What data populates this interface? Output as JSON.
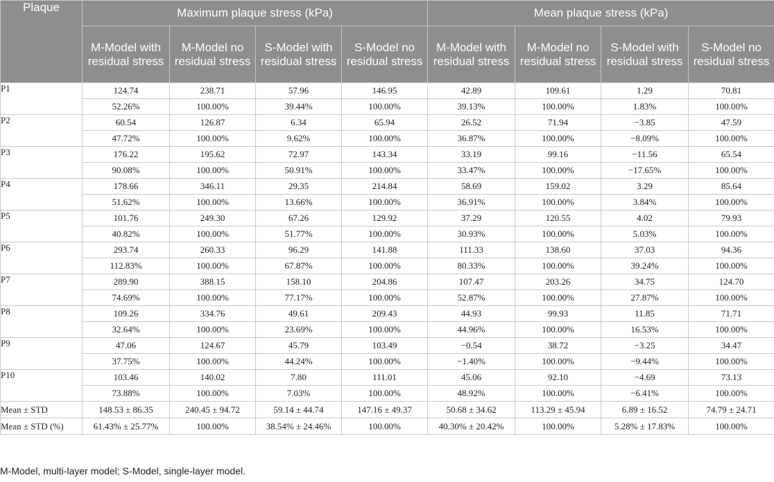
{
  "header": {
    "plaque_label": "Plaque",
    "groups": [
      "Maximum plaque stress (kPa)",
      "Mean plaque stress (kPa)"
    ],
    "columns": [
      "M-Model with residual stress",
      "M-Model no residual stress",
      "S-Model with residual stress",
      "S-Model no residual stress",
      "M-Model with residual stress",
      "M-Model no residual stress",
      "S-Model with residual stress",
      "S-Model no residual stress"
    ]
  },
  "rows": [
    {
      "name": "P1",
      "values": [
        "124.74",
        "238.71",
        "57.96",
        "146.95",
        "42.89",
        "109.61",
        "1.29",
        "70.81"
      ],
      "percents": [
        "52.26%",
        "100.00%",
        "39.44%",
        "100.00%",
        "39.13%",
        "100.00%",
        "1.83%",
        "100.00%"
      ]
    },
    {
      "name": "P2",
      "values": [
        "60.54",
        "126.87",
        "6.34",
        "65.94",
        "26.52",
        "71.94",
        "−3.85",
        "47.59"
      ],
      "percents": [
        "47.72%",
        "100.00%",
        "9.62%",
        "100.00%",
        "36.87%",
        "100.00%",
        "−8.09%",
        "100.00%"
      ]
    },
    {
      "name": "P3",
      "values": [
        "176.22",
        "195.62",
        "72.97",
        "143.34",
        "33.19",
        "99.16",
        "−11.56",
        "65.54"
      ],
      "percents": [
        "90.08%",
        "100.00%",
        "50.91%",
        "100.00%",
        "33.47%",
        "100.00%",
        "−17.65%",
        "100.00%"
      ]
    },
    {
      "name": "P4",
      "values": [
        "178.66",
        "346.11",
        "29.35",
        "214.84",
        "58.69",
        "159.02",
        "3.29",
        "85.64"
      ],
      "percents": [
        "51.62%",
        "100.00%",
        "13.66%",
        "100.00%",
        "36.91%",
        "100.00%",
        "3.84%",
        "100.00%"
      ]
    },
    {
      "name": "P5",
      "values": [
        "101.76",
        "249.30",
        "67.26",
        "129.92",
        "37.29",
        "120.55",
        "4.02",
        "79.93"
      ],
      "percents": [
        "40.82%",
        "100.00%",
        "51.77%",
        "100.00%",
        "30.93%",
        "100.00%",
        "5.03%",
        "100.00%"
      ]
    },
    {
      "name": "P6",
      "values": [
        "293.74",
        "260.33",
        "96.29",
        "141.88",
        "111.33",
        "138.60",
        "37.03",
        "94.36"
      ],
      "percents": [
        "112.83%",
        "100.00%",
        "67.87%",
        "100.00%",
        "80.33%",
        "100.00%",
        "39.24%",
        "100.00%"
      ]
    },
    {
      "name": "P7",
      "values": [
        "289.90",
        "388.15",
        "158.10",
        "204.86",
        "107.47",
        "203.26",
        "34.75",
        "124.70"
      ],
      "percents": [
        "74.69%",
        "100.00%",
        "77.17%",
        "100.00%",
        "52.87%",
        "100.00%",
        "27.87%",
        "100.00%"
      ]
    },
    {
      "name": "P8",
      "values": [
        "109.26",
        "334.76",
        "49.61",
        "209.43",
        "44.93",
        "99.93",
        "11.85",
        "71.71"
      ],
      "percents": [
        "32.64%",
        "100.00%",
        "23.69%",
        "100.00%",
        "44.96%",
        "100.00%",
        "16.53%",
        "100.00%"
      ]
    },
    {
      "name": "P9",
      "values": [
        "47.06",
        "124.67",
        "45.79",
        "103.49",
        "−0.54",
        "38.72",
        "−3.25",
        "34.47"
      ],
      "percents": [
        "37.75%",
        "100.00%",
        "44.24%",
        "100.00%",
        "−1.40%",
        "100.00%",
        "−9.44%",
        "100.00%"
      ]
    },
    {
      "name": "P10",
      "values": [
        "103.46",
        "140.02",
        "7.80",
        "111.01",
        "45.06",
        "92.10",
        "−4.69",
        "73.13"
      ],
      "percents": [
        "73.88%",
        "100.00%",
        "7.03%",
        "100.00%",
        "48.92%",
        "100.00%",
        "−6.41%",
        "100.00%"
      ]
    }
  ],
  "summary": [
    {
      "label": "Mean ± STD",
      "values": [
        "148.53 ± 86.35",
        "240.45 ± 94.72",
        "59.14 ± 44.74",
        "147.16 ± 49.37",
        "50.68 ± 34.62",
        "113.29 ± 45.94",
        "6.89 ± 16.52",
        "74.79 ± 24.71"
      ]
    },
    {
      "label": "Mean ± STD (%)",
      "values": [
        "61.43% ± 25.77%",
        "100.00%",
        "38.54% ± 24.46%",
        "100.00%",
        "40.30% ± 20.42%",
        "100.00%",
        "5.28% ± 17.83%",
        "100.00%"
      ]
    }
  ],
  "footnote": "M-Model, multi-layer model; S-Model, single-layer model."
}
